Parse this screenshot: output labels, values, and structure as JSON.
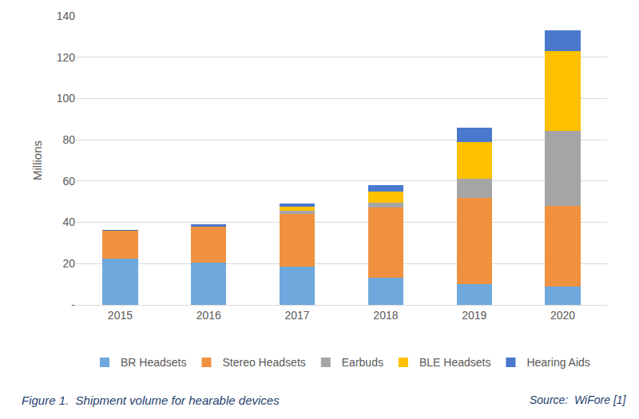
{
  "chart_data": {
    "type": "bar",
    "stacked": true,
    "y_label": "Millions",
    "categories": [
      "2015",
      "2016",
      "2017",
      "2018",
      "2019",
      "2020"
    ],
    "series": [
      {
        "name": "BR Headsets",
        "color": "#6fa8dc",
        "values": [
          22.5,
          20.5,
          18.5,
          13,
          10,
          9
        ]
      },
      {
        "name": "Stereo Headsets",
        "color": "#f0913f",
        "values": [
          13.5,
          17.5,
          25.5,
          34,
          42,
          39
        ]
      },
      {
        "name": "Earbuds",
        "color": "#a5a5a5",
        "values": [
          0,
          0,
          1.5,
          2.5,
          9,
          36.5
        ]
      },
      {
        "name": "BLE Headsets",
        "color": "#ffc000",
        "values": [
          0,
          0,
          2,
          5.5,
          18,
          38.5
        ]
      },
      {
        "name": "Hearing Aids",
        "color": "#4a78cc",
        "values": [
          0.5,
          1,
          1.5,
          3,
          7,
          10
        ]
      }
    ],
    "ylim": [
      0,
      140
    ],
    "yticks": [
      {
        "value": 0,
        "label": "-"
      },
      20,
      40,
      60,
      80,
      100,
      120,
      140
    ],
    "grid": true,
    "legend": "bottom",
    "annotations": [
      "Figure 1.  Shipment volume for hearable devices",
      "Source:  WiFore [1]"
    ]
  }
}
